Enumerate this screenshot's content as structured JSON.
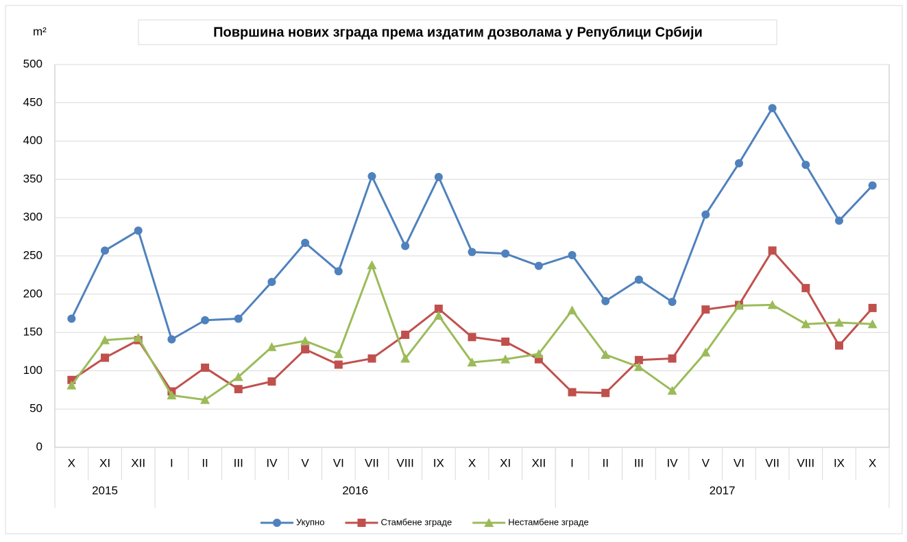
{
  "chart_data": {
    "type": "line",
    "title": "Површина нових зграда према издатим дозволама у Републици Србији",
    "y_label": "m²",
    "groups": [
      {
        "label": "2015",
        "categories": [
          "X",
          "XI",
          "XII"
        ]
      },
      {
        "label": "2016",
        "categories": [
          "I",
          "II",
          "III",
          "IV",
          "V",
          "VI",
          "VII",
          "VIII",
          "IX",
          "X",
          "XI",
          "XII"
        ]
      },
      {
        "label": "2017",
        "categories": [
          "I",
          "II",
          "III",
          "IV",
          "V",
          "VI",
          "VII",
          "VIII",
          "IX",
          "X"
        ]
      }
    ],
    "series": [
      {
        "name": "Укупно",
        "color": "#4f81bd",
        "marker": "circle",
        "values": [
          168,
          257,
          283,
          141,
          166,
          168,
          216,
          267,
          230,
          354,
          263,
          353,
          255,
          253,
          237,
          251,
          191,
          219,
          190,
          304,
          371,
          443,
          369,
          296,
          342
        ]
      },
      {
        "name": "Стамбене зграде",
        "color": "#c0504d",
        "marker": "square",
        "values": [
          88,
          117,
          140,
          73,
          104,
          76,
          86,
          128,
          108,
          116,
          147,
          181,
          144,
          138,
          115,
          72,
          71,
          114,
          116,
          180,
          186,
          257,
          208,
          133,
          182
        ]
      },
      {
        "name": "Нестамбене зграде",
        "color": "#9bbb59",
        "marker": "triangle",
        "values": [
          81,
          140,
          143,
          68,
          62,
          92,
          131,
          139,
          122,
          238,
          116,
          172,
          111,
          115,
          122,
          179,
          121,
          105,
          74,
          124,
          185,
          186,
          161,
          163,
          161
        ]
      }
    ],
    "ylim": [
      0,
      500
    ],
    "yticks": [
      0,
      50,
      100,
      150,
      200,
      250,
      300,
      350,
      400,
      450,
      500
    ],
    "grid": true,
    "legend": "bottom"
  }
}
